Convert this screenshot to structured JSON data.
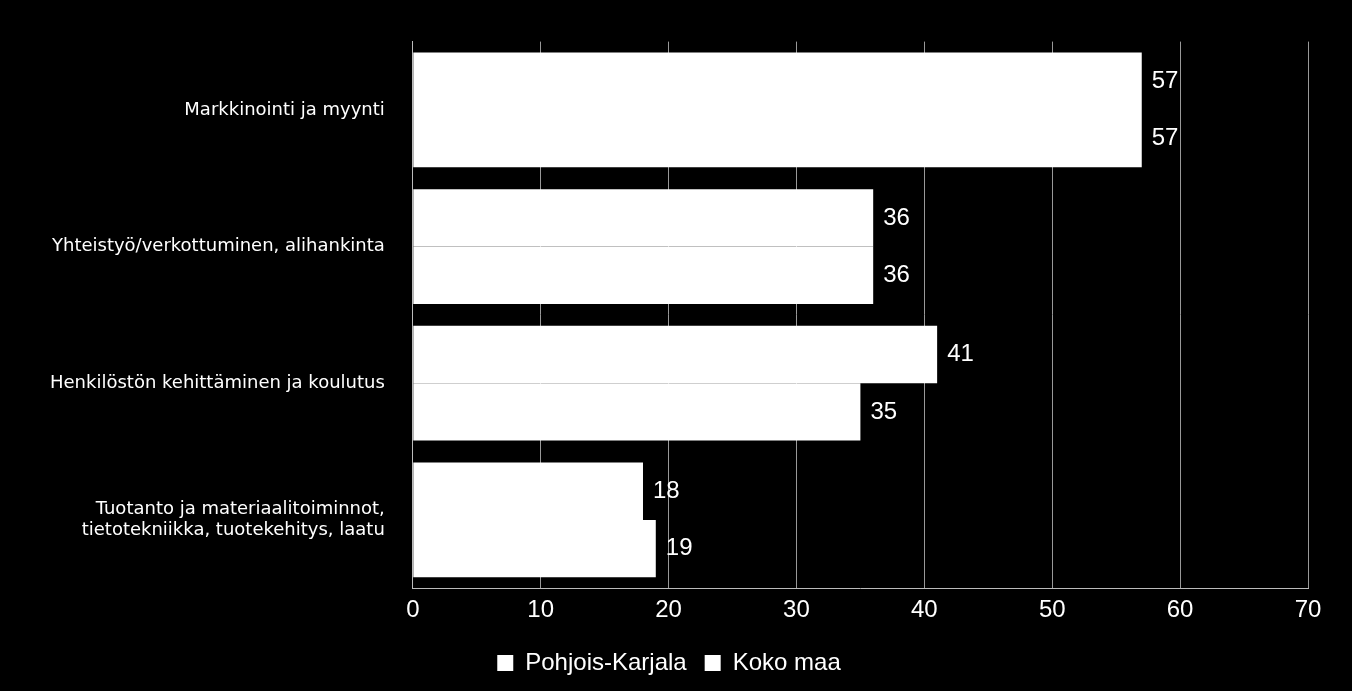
{
  "chart_data": {
    "type": "bar",
    "orientation": "horizontal",
    "categories": [
      "Markkinointi ja myynti",
      "Yhteistyö/verkottuminen, alihankinta",
      "Henkilöstön kehittäminen ja koulutus",
      "Tuotanto ja materiaalitoiminnot,\ntietotekniikka, tuotekehitys, laatu"
    ],
    "series": [
      {
        "name": "Pohjois-Karjala",
        "color": "#ffffff",
        "values": [
          57,
          36,
          41,
          18
        ]
      },
      {
        "name": "Koko maa",
        "color": "#ffffff",
        "values": [
          57,
          36,
          35,
          19
        ]
      }
    ],
    "xlim": [
      0,
      70
    ],
    "xticks": [
      0,
      10,
      20,
      30,
      40,
      50,
      60,
      70
    ],
    "grid": true,
    "legend": "bottom",
    "data_labels": true
  }
}
